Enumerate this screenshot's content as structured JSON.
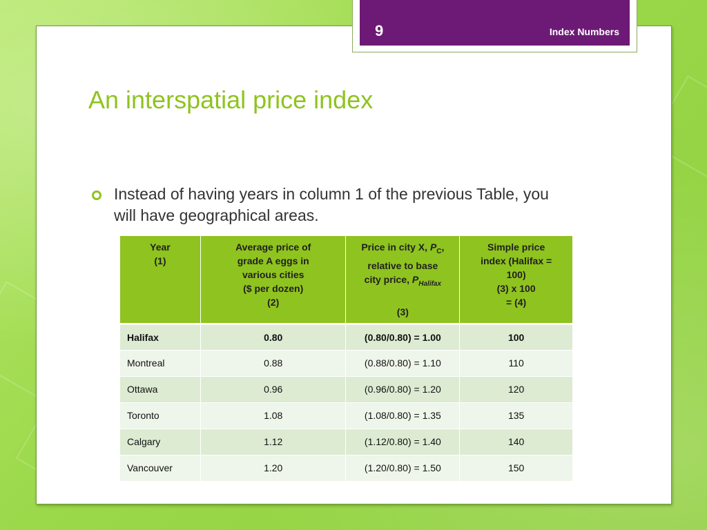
{
  "header": {
    "slide_number": "9",
    "footer_title": "Index Numbers"
  },
  "title": "An interspatial price index",
  "bullet": "Instead of having years in column 1 of the previous Table, you will have geographical areas.",
  "table": {
    "headers": {
      "col1": [
        "Year",
        "(1)"
      ],
      "col2": [
        "Average price of",
        "grade A eggs in",
        "various cities",
        "($ per dozen)",
        "(2)"
      ],
      "col3": {
        "line1_prefix": "Price in city X, ",
        "line1_var": "P",
        "line1_sub": "C",
        "line1_suffix": ",",
        "line2": "relative to base",
        "line3_prefix": "city price, ",
        "line3_var": "P",
        "line3_sub": "Halifax",
        "line4": "(3)"
      },
      "col4": [
        "Simple price",
        "index (Halifax =",
        "100)",
        "(3) x 100",
        "= (4)"
      ]
    },
    "rows": [
      {
        "city": "Halifax",
        "price": "0.80",
        "relative": "(0.80/0.80) = 1.00",
        "index": "100"
      },
      {
        "city": "Montreal",
        "price": "0.88",
        "relative": "(0.88/0.80) = 1.10",
        "index": "110"
      },
      {
        "city": "Ottawa",
        "price": "0.96",
        "relative": "(0.96/0.80) = 1.20",
        "index": "120"
      },
      {
        "city": "Toronto",
        "price": "1.08",
        "relative": "(1.08/0.80) = 1.35",
        "index": "135"
      },
      {
        "city": "Calgary",
        "price": "1.12",
        "relative": "(1.12/0.80) = 1.40",
        "index": "140"
      },
      {
        "city": "Vancouver",
        "price": "1.20",
        "relative": "(1.20/0.80) = 1.50",
        "index": "150"
      }
    ]
  },
  "colors": {
    "accent_green": "#8fc31f",
    "header_purple": "#6d1a76",
    "row_dark": "#dcebd2",
    "row_light": "#eef5ea"
  }
}
